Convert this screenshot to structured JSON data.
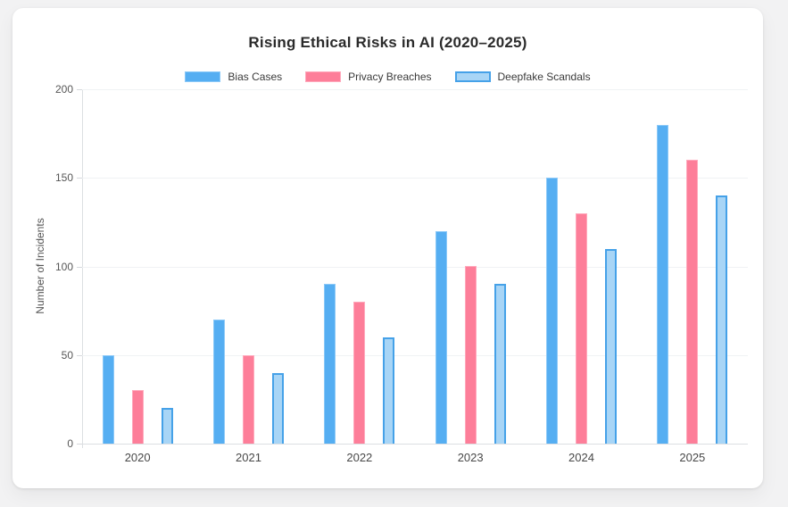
{
  "page": {
    "background": "#f2f2f3"
  },
  "chart_data": {
    "type": "bar",
    "title": "Rising Ethical Risks in AI (2020–2025)",
    "categories": [
      "2020",
      "2021",
      "2022",
      "2023",
      "2024",
      "2025"
    ],
    "series": [
      {
        "name": "Bias Cases",
        "values": [
          50,
          70,
          90,
          120,
          150,
          180
        ],
        "fill": "#55AEF2",
        "border": "#8CC9F8",
        "border_width": 1
      },
      {
        "name": "Privacy Breaches",
        "values": [
          30,
          50,
          80,
          100,
          130,
          160
        ],
        "fill": "#FD7E99",
        "border": "#FFA9BC",
        "border_width": 1
      },
      {
        "name": "Deepfake Scandals",
        "values": [
          20,
          40,
          60,
          90,
          110,
          140
        ],
        "fill": "#A8D5F6",
        "border": "#45A1E8",
        "border_width": 2
      }
    ],
    "xlabel": "",
    "ylabel": "Number of Incidents",
    "ylim": [
      0,
      200
    ],
    "yticks": [
      0,
      50,
      100,
      150,
      200
    ],
    "grid": true,
    "legend_position": "top",
    "colors": {
      "gridline": "#f0f2f4",
      "axis_line": "#dcdfe2",
      "tick_label": "#565656",
      "title_text": "#2b2b2b"
    }
  }
}
